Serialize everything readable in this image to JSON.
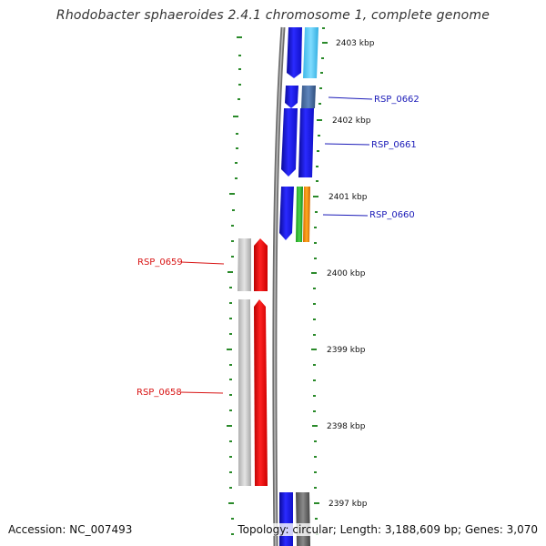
{
  "title": "Rhodobacter sphaeroides 2.4.1 chromosome 1, complete genome",
  "footer": {
    "accession": "Accession: NC_007493",
    "topology": "Topology: circular; Length: 3,188,609 bp; Genes: 3,070"
  },
  "ticks": [
    "2403 kbp",
    "2402 kbp",
    "2401 kbp",
    "2400 kbp",
    "2399 kbp",
    "2398 kbp",
    "2397 kbp"
  ],
  "genes": {
    "RSP_0662": "RSP_0662",
    "RSP_0661": "RSP_0661",
    "RSP_0660": "RSP_0660",
    "RSP_0659": "RSP_0659",
    "RSP_0658": "RSP_0658"
  },
  "colors": {
    "forward_label": "#1a1ab8",
    "reverse_label": "#d81414",
    "tick": "#2a8a2a",
    "backbone": "#707070"
  }
}
